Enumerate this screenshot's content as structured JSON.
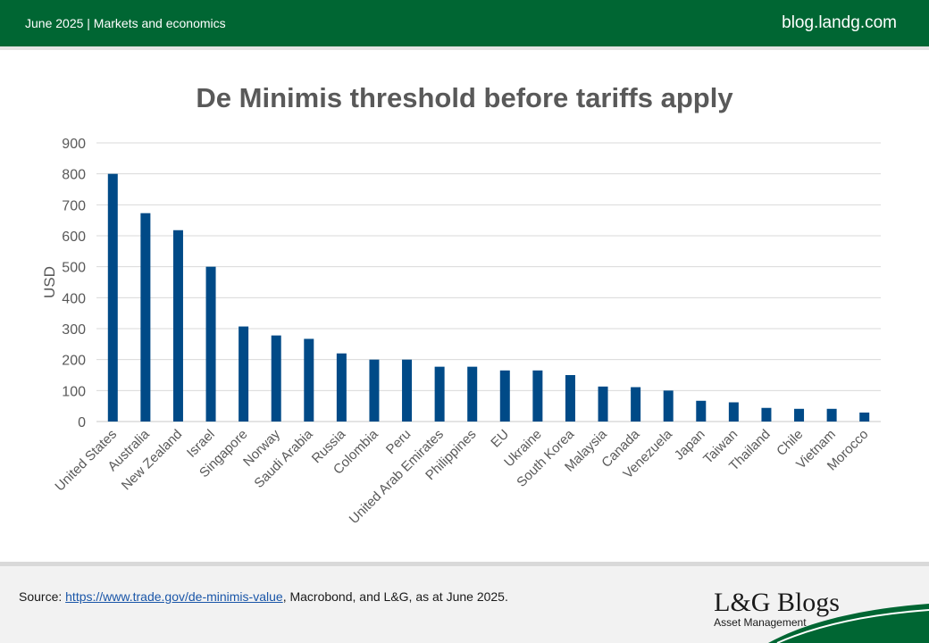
{
  "header": {
    "date_category": "June 2025 | Markets and economics",
    "site": "blog.landg.com"
  },
  "footer": {
    "source_prefix": "Source: ",
    "source_link": "https://www.trade.gov/de-minimis-value",
    "source_suffix": ", Macrobond, and L&G, as at June 2025.",
    "logo_name": "L&G Blogs",
    "logo_sub": "Asset Management"
  },
  "colors": {
    "brand_green": "#006633",
    "bar": "#004a87",
    "link": "#1a56a8"
  },
  "chart_data": {
    "type": "bar",
    "title": "De Minimis threshold before tariffs apply",
    "xlabel": "",
    "ylabel": "USD",
    "ylim": [
      0,
      900
    ],
    "yticks": [
      0,
      100,
      200,
      300,
      400,
      500,
      600,
      700,
      800,
      900
    ],
    "grid": true,
    "categories": [
      "United States",
      "Australia",
      "New Zealand",
      "Israel",
      "Singapore",
      "Norway",
      "Saudi Arabia",
      "Russia",
      "Colombia",
      "Peru",
      "United Arab Emirates",
      "Philippines",
      "EU",
      "Ukraine",
      "South Korea",
      "Malaysia",
      "Canada",
      "Venezuela",
      "Japan",
      "Taiwan",
      "Thailand",
      "Chile",
      "Vietnam",
      "Morocco"
    ],
    "values": [
      800,
      673,
      618,
      500,
      307,
      278,
      267,
      220,
      200,
      200,
      177,
      177,
      165,
      165,
      150,
      113,
      111,
      100,
      67,
      62,
      44,
      41,
      41,
      29
    ]
  }
}
